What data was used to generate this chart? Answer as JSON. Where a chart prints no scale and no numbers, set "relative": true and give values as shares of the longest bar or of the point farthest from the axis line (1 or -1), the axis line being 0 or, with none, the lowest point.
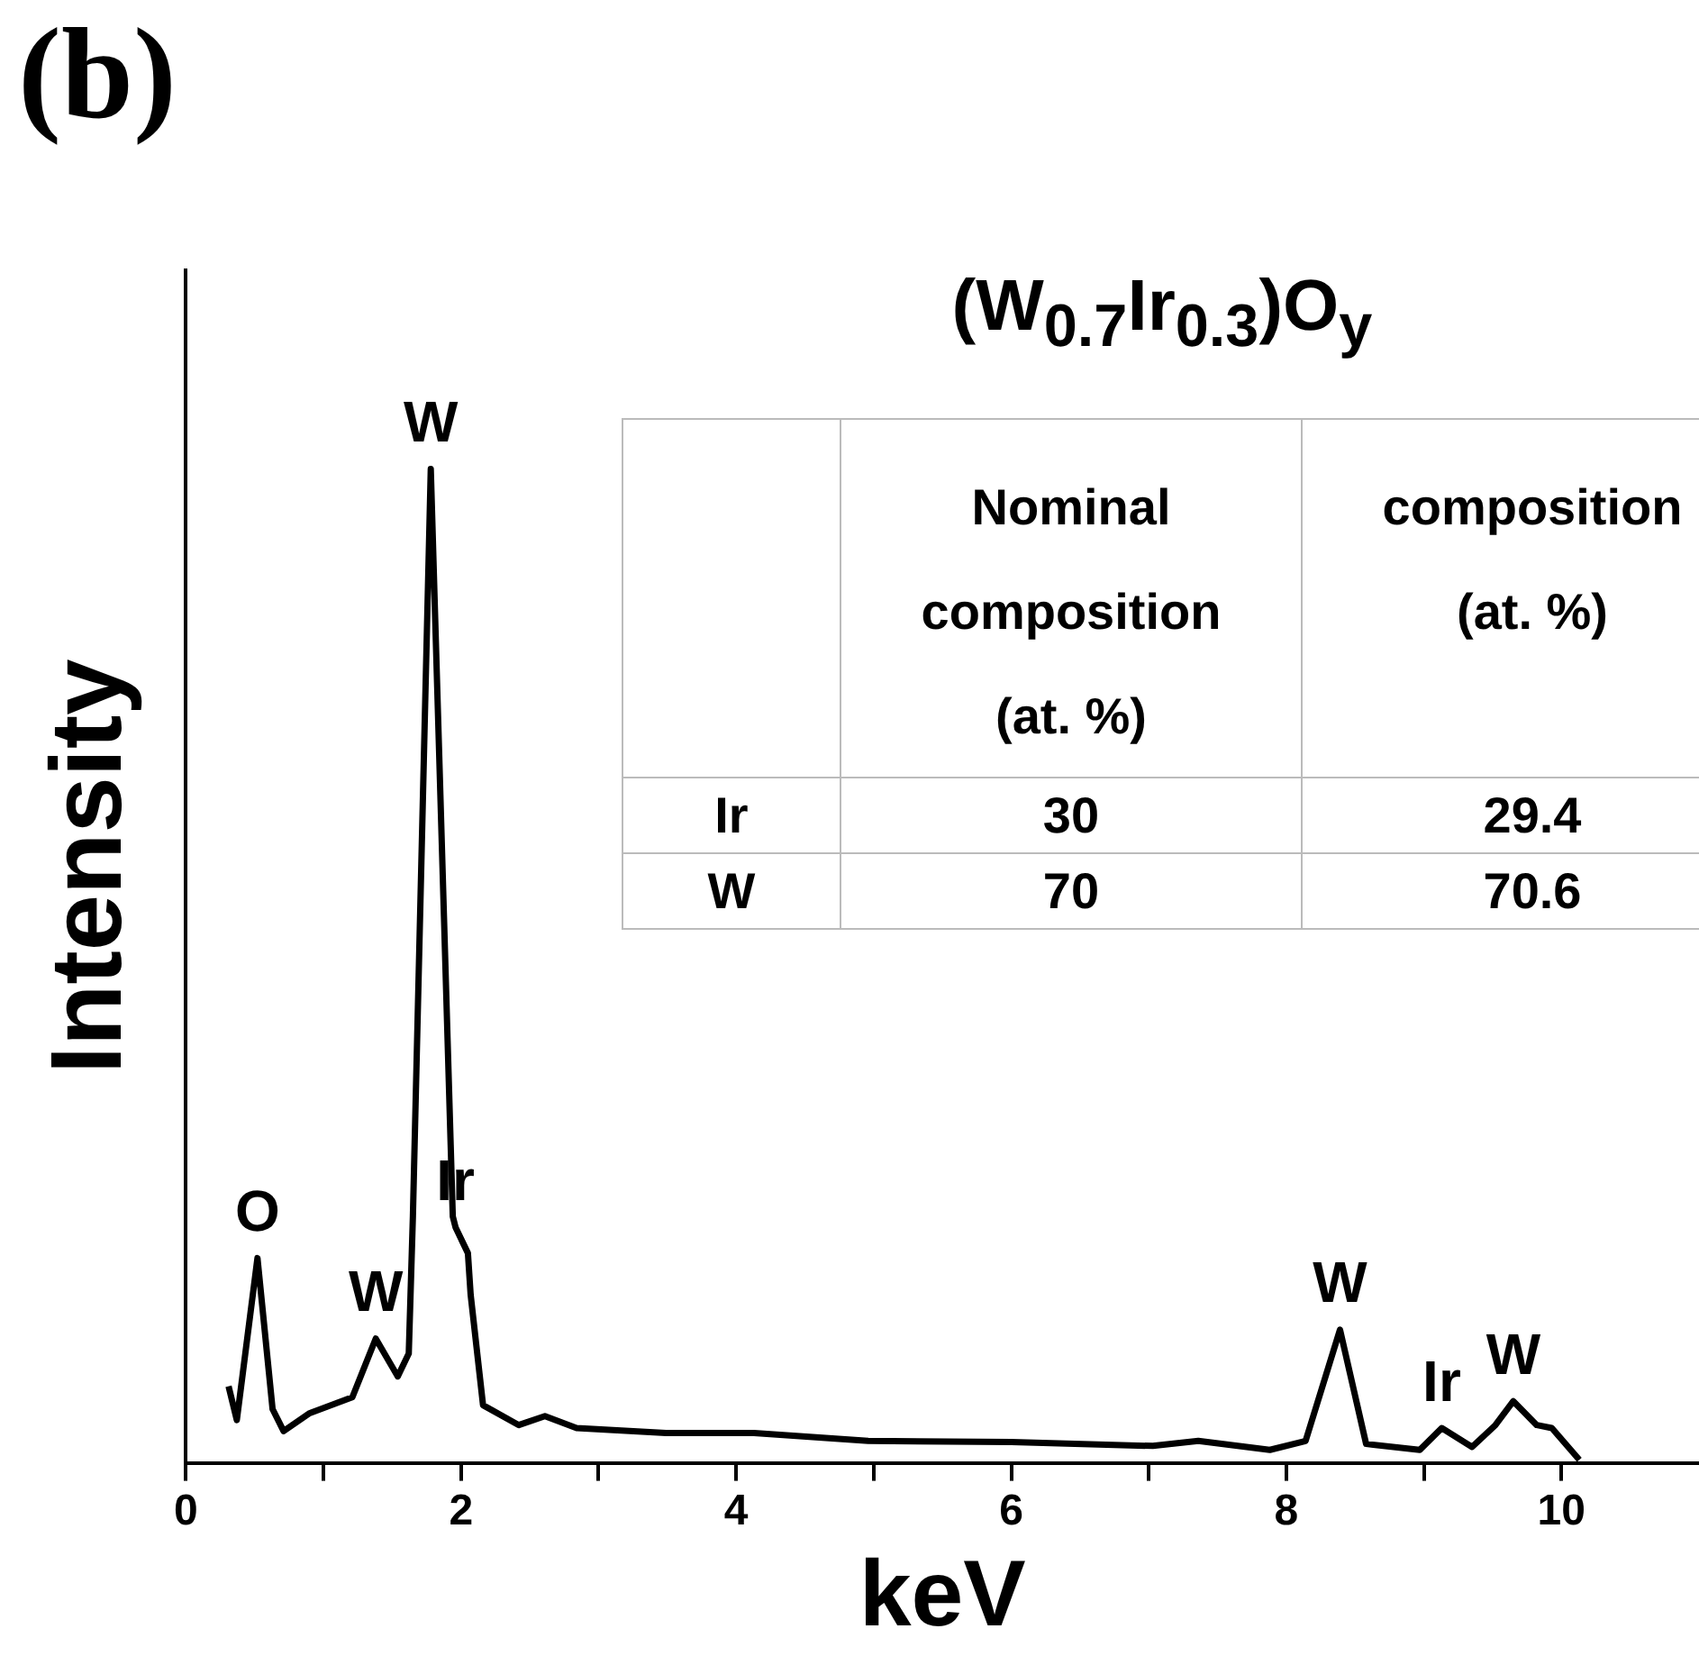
{
  "chart_data": {
    "type": "line",
    "title": "(b)",
    "xlabel": "keV",
    "ylabel": "Intensity",
    "relative": true,
    "color": "#000000",
    "marker": "none",
    "line_style": "solid",
    "legend": false,
    "grid": false,
    "tick_labels": "x",
    "xlim": [
      0,
      11
    ],
    "xticks": [
      0,
      {
        "value": 1,
        "label": null
      },
      2,
      {
        "value": 3,
        "label": null
      },
      4,
      {
        "value": 5,
        "label": null
      },
      6,
      {
        "value": 7,
        "label": null
      },
      8,
      {
        "value": 9,
        "label": null
      },
      10
    ],
    "x": [
      0.31,
      0.37,
      0.52,
      0.63,
      0.71,
      0.9,
      1.21,
      1.38,
      1.54,
      1.62,
      1.65,
      1.78,
      1.94,
      1.96,
      2.05,
      2.07,
      2.16,
      2.42,
      2.61,
      2.84,
      3.49,
      4.13,
      4.96,
      6.0,
      7.03,
      7.36,
      7.88,
      8.14,
      8.39,
      8.58,
      8.97,
      9.13,
      9.35,
      9.52,
      9.65,
      9.82,
      9.93,
      10.13
    ],
    "values": [
      0.077,
      0.043,
      0.206,
      0.054,
      0.032,
      0.05,
      0.066,
      0.125,
      0.087,
      0.11,
      0.248,
      1.0,
      0.248,
      0.237,
      0.211,
      0.169,
      0.058,
      0.038,
      0.047,
      0.035,
      0.03,
      0.03,
      0.022,
      0.021,
      0.017,
      0.022,
      0.013,
      0.022,
      0.134,
      0.019,
      0.013,
      0.035,
      0.016,
      0.038,
      0.062,
      0.038,
      0.035,
      0.003
    ],
    "annotations": [
      {
        "text": "O",
        "x": 0.52,
        "y": 0.206
      },
      {
        "text": "W",
        "x": 1.38,
        "y": 0.125
      },
      {
        "text": "W",
        "x": 1.78,
        "y": 1.0
      },
      {
        "text": "Ir",
        "x": 1.96,
        "y": 0.237
      },
      {
        "text": "W",
        "x": 8.39,
        "y": 0.134
      },
      {
        "text": "Ir",
        "x": 9.13,
        "y": 0.035
      },
      {
        "text": "W",
        "x": 9.65,
        "y": 0.062
      },
      "(W$_{0.7}$Ir$_{0.3}$)O$_{y}$",
      "Nominal composition (at. %)",
      "composition (at. %)",
      "Ir",
      "30",
      "29.4",
      "W",
      "70",
      "70.6"
    ]
  }
}
